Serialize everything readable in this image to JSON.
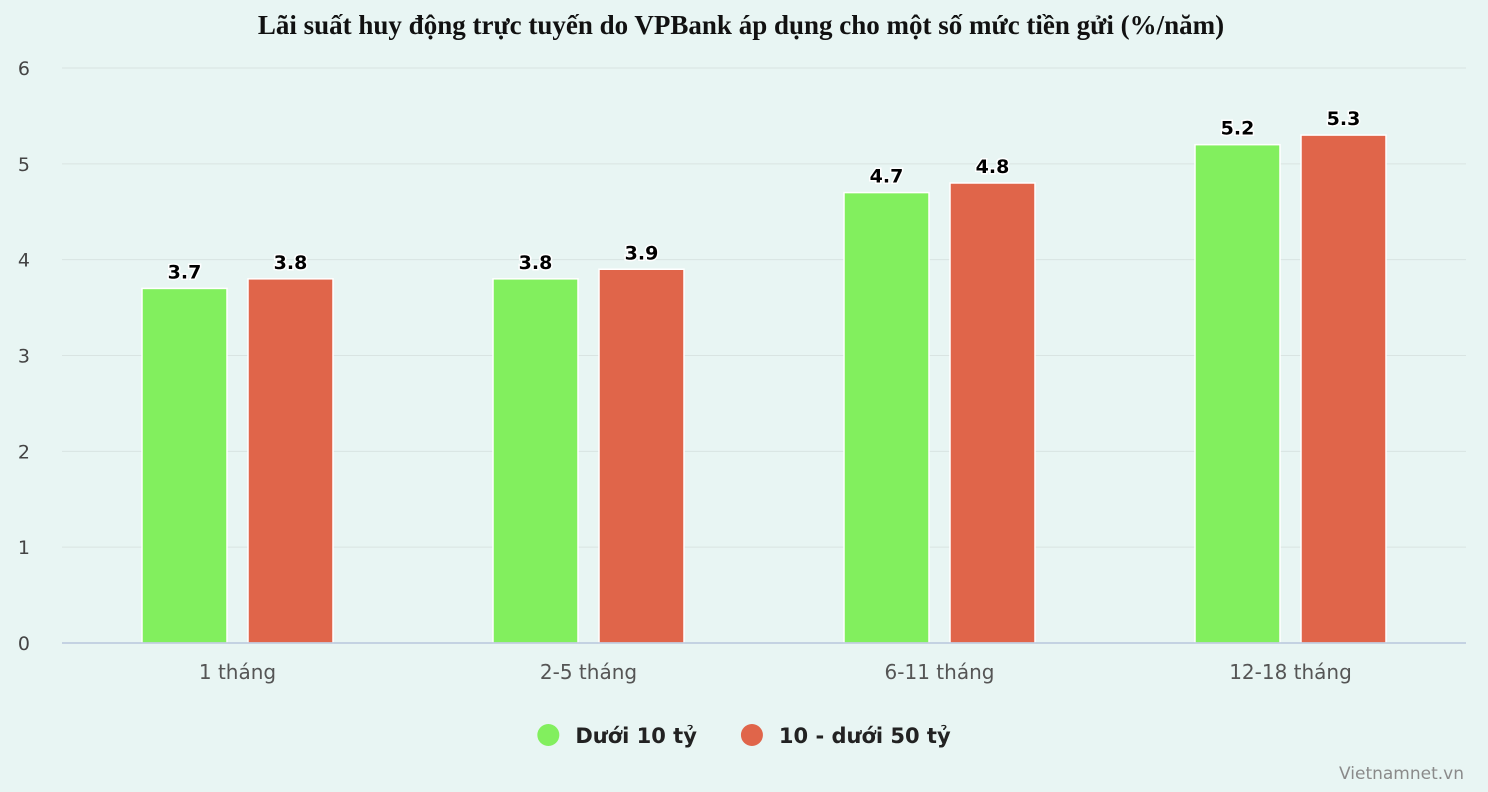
{
  "chart_data": {
    "type": "bar",
    "title": "Lãi suất huy động trực tuyến do VPBank áp dụng cho một số mức tiền gửi (%/năm)",
    "categories": [
      "1 tháng",
      "2-5 tháng",
      "6-11 tháng",
      "12-18 tháng"
    ],
    "series": [
      {
        "name": "Dưới 10 tỷ",
        "color": "#82ef5e",
        "values": [
          3.7,
          3.8,
          4.7,
          5.2
        ]
      },
      {
        "name": "10 - dưới 50 tỷ",
        "color": "#e0654a",
        "values": [
          3.8,
          3.9,
          4.8,
          5.3
        ]
      }
    ],
    "ylim": [
      0,
      6
    ],
    "yticks": [
      0,
      1,
      2,
      3,
      4,
      5,
      6
    ],
    "grid": true,
    "legend_position": "bottom-center"
  },
  "credit": "Vietnamnet.vn"
}
